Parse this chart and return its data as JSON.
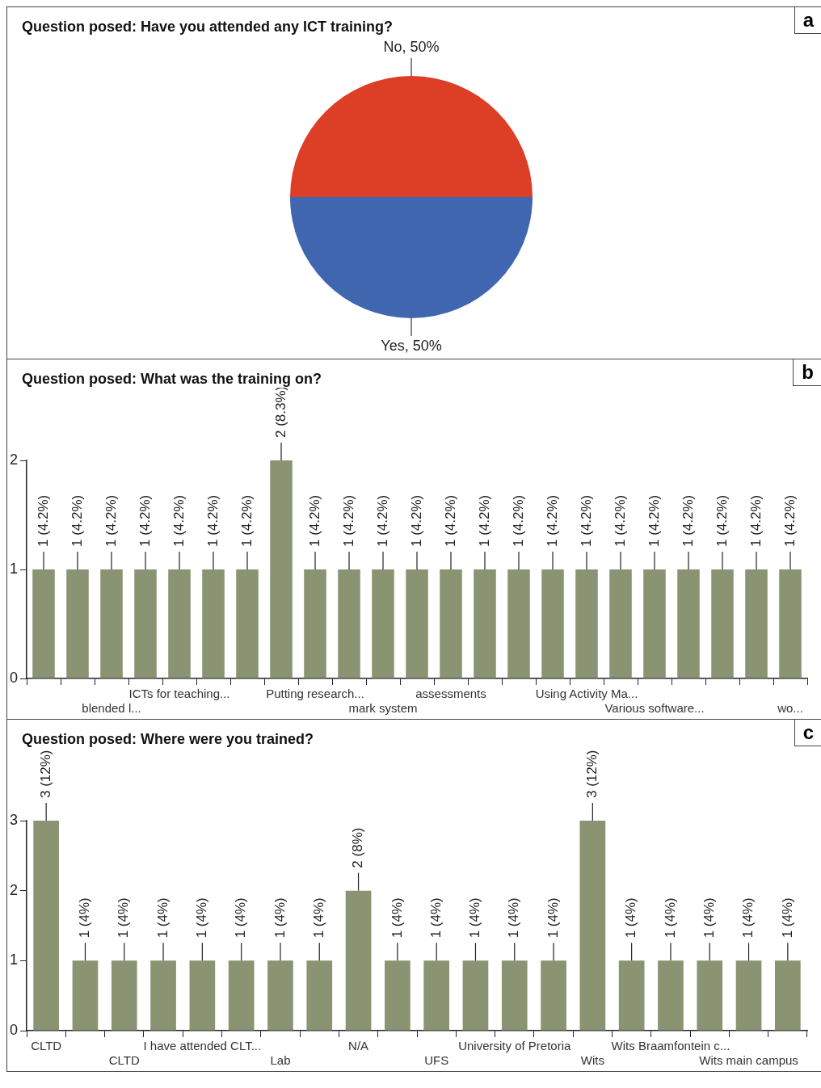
{
  "chart_data": [
    {
      "type": "pie",
      "title": "Question posed: Have you attended any ICT training?",
      "categories": [
        "No",
        "Yes"
      ],
      "values": [
        50,
        50
      ],
      "colors": [
        "#dc3e26",
        "#4166b0"
      ],
      "value_labels": [
        "50%",
        "50%"
      ],
      "annotations": [
        "a"
      ]
    },
    {
      "type": "bar",
      "title": "Question posed: What was the training on?",
      "categories": [
        null,
        null,
        "blended l...",
        null,
        "ICTs for teaching...",
        null,
        null,
        null,
        "Putting research...",
        null,
        "mark system",
        null,
        "assessments",
        null,
        null,
        null,
        "Using Activity Ma...",
        null,
        "Various software...",
        null,
        null,
        null,
        "wo..."
      ],
      "values": [
        1,
        1,
        1,
        1,
        1,
        1,
        1,
        2,
        1,
        1,
        1,
        1,
        1,
        1,
        1,
        1,
        1,
        1,
        1,
        1,
        1,
        1,
        1
      ],
      "color": "#8a9473",
      "value_labels": [
        "1 (4.2%)",
        "1 (4.2%)",
        "1 (4.2%)",
        "1 (4.2%)",
        "1 (4.2%)",
        "1 (4.2%)",
        "1 (4.2%)",
        "2 (8.3%)",
        "1 (4.2%)",
        "1 (4.2%)",
        "1 (4.2%)",
        "1 (4.2%)",
        "1 (4.2%)",
        "1 (4.2%)",
        "1 (4.2%)",
        "1 (4.2%)",
        "1 (4.2%)",
        "1 (4.2%)",
        "1 (4.2%)",
        "1 (4.2%)",
        "1 (4.2%)",
        "1 (4.2%)",
        "1 (4.2%)"
      ],
      "ylim": [
        0,
        2
      ],
      "yticks": [
        0,
        1,
        2
      ],
      "annotations": [
        "b"
      ]
    },
    {
      "type": "bar",
      "title": "Question posed: Where were you trained?",
      "categories": [
        "CLTD",
        null,
        "CLTD",
        null,
        "I have attended CLT...",
        null,
        "Lab",
        null,
        "N/A",
        null,
        "UFS",
        null,
        "University of Pretoria",
        null,
        "Wits",
        null,
        "Wits Braamfontein c...",
        null,
        "Wits main campus",
        null
      ],
      "values": [
        3,
        1,
        1,
        1,
        1,
        1,
        1,
        1,
        2,
        1,
        1,
        1,
        1,
        1,
        3,
        1,
        1,
        1,
        1,
        1
      ],
      "color": "#8a9473",
      "value_labels": [
        "3 (12%)",
        "1 (4%)",
        "1 (4%)",
        "1 (4%)",
        "1 (4%)",
        "1 (4%)",
        "1 (4%)",
        "1 (4%)",
        "2 (8%)",
        "1 (4%)",
        "1 (4%)",
        "1 (4%)",
        "1 (4%)",
        "1 (4%)",
        "3 (12%)",
        "1 (4%)",
        "1 (4%)",
        "1 (4%)",
        "1 (4%)",
        "1 (4%)"
      ],
      "ylim": [
        0,
        3
      ],
      "yticks": [
        0,
        1,
        2,
        3
      ],
      "annotations": [
        "c"
      ]
    }
  ]
}
